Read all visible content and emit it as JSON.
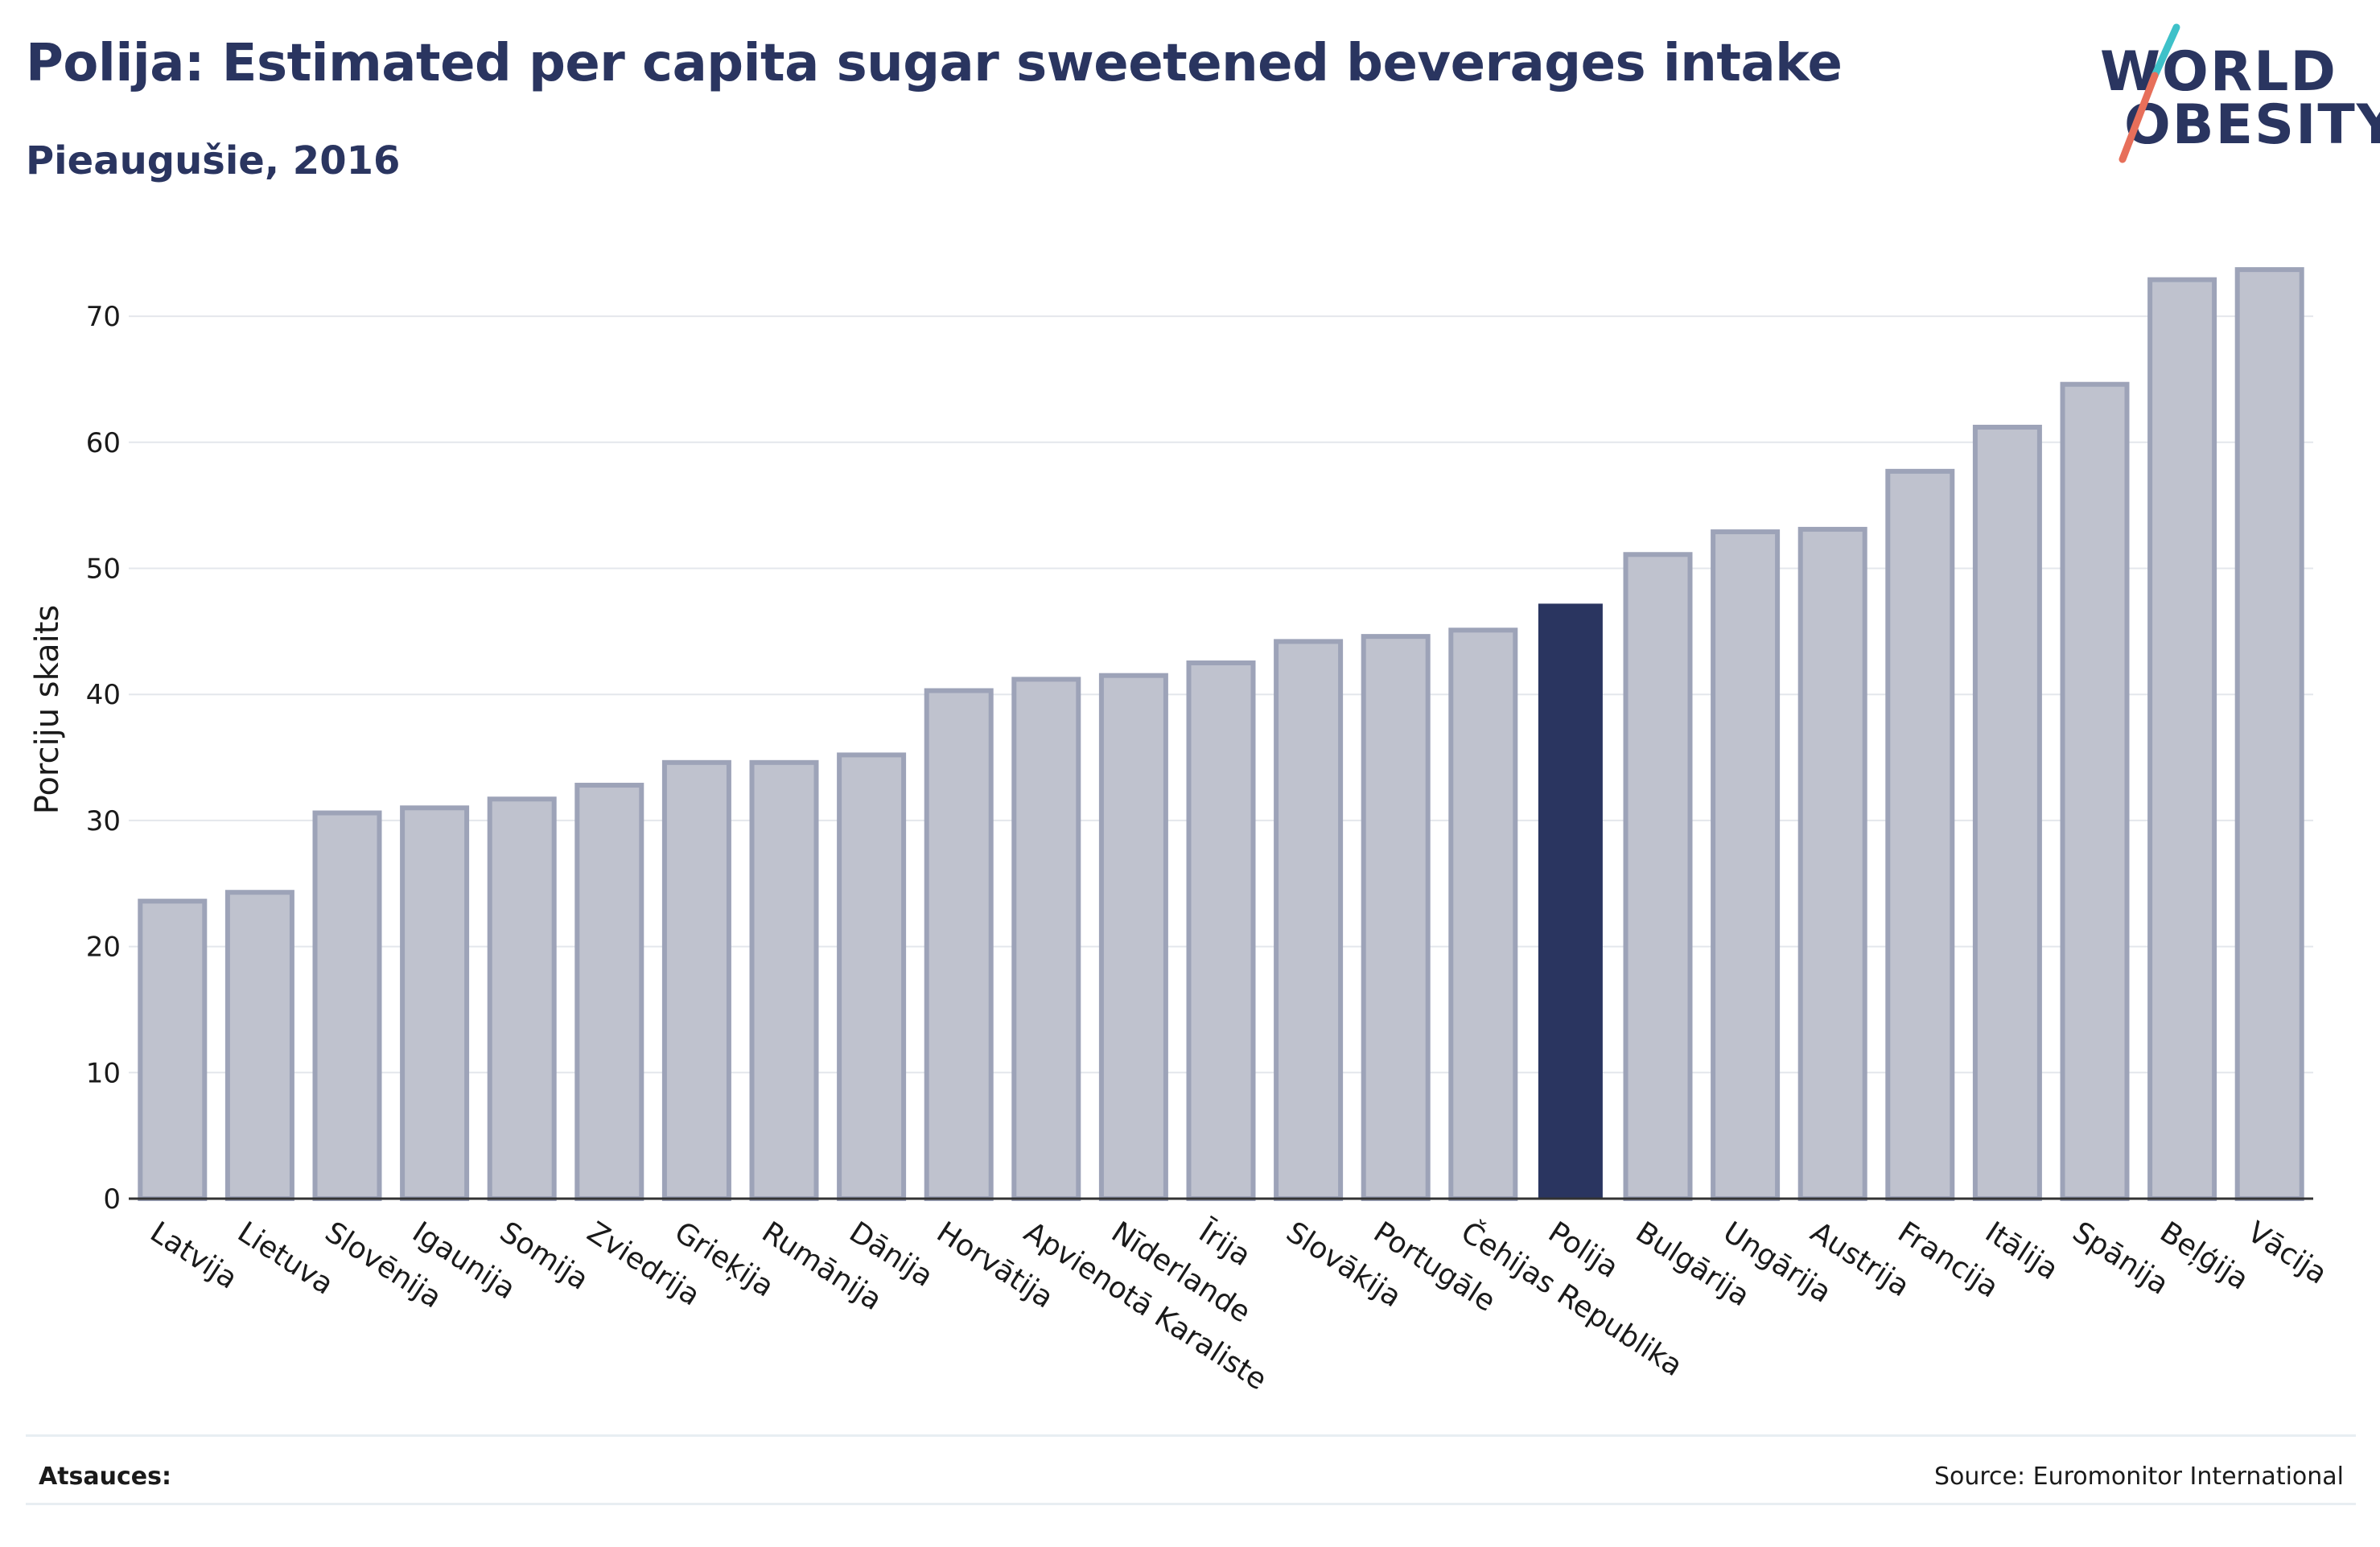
{
  "header": {
    "title": "Polija: Estimated per capita sugar sweetened beverages intake",
    "subtitle": "Pieaugušie, 2016"
  },
  "logo": {
    "line1": "WORLD",
    "line2": "OBESITY",
    "slash_colors": [
      "#3ec1c9",
      "#e76f5a"
    ]
  },
  "footer": {
    "references_label": "Atsauces:",
    "source": "Source: Euromonitor International"
  },
  "colors": {
    "bar": "#bfc2ce",
    "bar_border": "#9da3b8",
    "highlight": "#2a3560",
    "grid": "#e4e7ec",
    "axis": "#333333",
    "text": "#1a1a1a"
  },
  "chart_data": {
    "type": "bar",
    "ylabel": "Porciju skaits",
    "xlabel": "",
    "ylim": [
      0,
      75
    ],
    "yticks": [
      0,
      10,
      20,
      30,
      40,
      50,
      60,
      70
    ],
    "grid": true,
    "highlight": "Polija",
    "categories": [
      "Latvija",
      "Lietuva",
      "Slovēnija",
      "Igaunija",
      "Somija",
      "Zviedrija",
      "Grieķija",
      "Rumānija",
      "Dānija",
      "Horvātija",
      "Apvienotā Karaliste",
      "Nīderlande",
      "Īrija",
      "Slovākija",
      "Portugāle",
      "Čehijas Republika",
      "Polija",
      "Bulgārija",
      "Ungārija",
      "Austrija",
      "Francija",
      "Itālija",
      "Spānija",
      "Beļģija",
      "Vācija"
    ],
    "values": [
      23.6,
      24.3,
      30.6,
      31.0,
      31.7,
      32.8,
      34.6,
      34.6,
      35.2,
      40.3,
      41.2,
      41.5,
      42.5,
      44.2,
      44.6,
      45.1,
      47.2,
      51.1,
      52.9,
      53.1,
      57.7,
      61.2,
      64.6,
      72.9,
      73.7
    ]
  }
}
